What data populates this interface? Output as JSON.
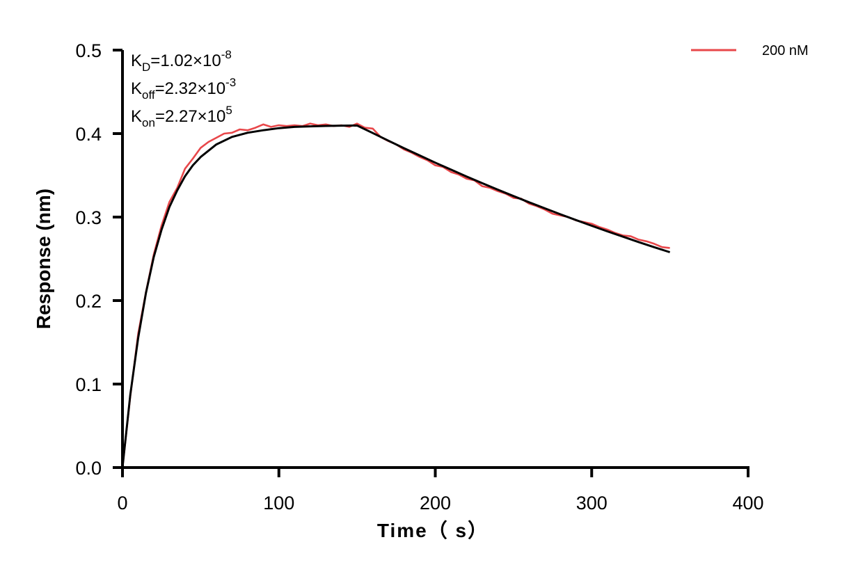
{
  "chart_data": {
    "type": "line",
    "xlabel": "Time（ s）",
    "ylabel": "Response (nm)",
    "xlim": [
      0,
      400
    ],
    "ylim": [
      0,
      0.5
    ],
    "xticks": [
      "0",
      "100",
      "200",
      "300",
      "400"
    ],
    "yticks": [
      "0.0",
      "0.1",
      "0.2",
      "0.3",
      "0.4",
      "0.5"
    ],
    "grid": false,
    "legend_position": "top-right",
    "annotations": {
      "kd": {
        "base": "K",
        "sub": "D",
        "value": "=1.02×10",
        "exp": "-8"
      },
      "koff": {
        "base": "K",
        "sub": "off",
        "value": "=2.32×10",
        "exp": "-3"
      },
      "kon": {
        "base": "K",
        "sub": "on",
        "value": "=2.27×10",
        "exp": "5"
      }
    },
    "series": [
      {
        "name": "200 nM",
        "color": "#e8474a",
        "x": [
          0,
          5,
          10,
          15,
          20,
          25,
          30,
          35,
          40,
          45,
          50,
          55,
          60,
          65,
          70,
          75,
          80,
          85,
          90,
          95,
          100,
          105,
          110,
          115,
          120,
          125,
          130,
          135,
          140,
          145,
          150,
          155,
          160,
          165,
          170,
          175,
          180,
          185,
          190,
          195,
          200,
          205,
          210,
          215,
          220,
          225,
          230,
          235,
          240,
          245,
          250,
          255,
          260,
          265,
          270,
          275,
          280,
          285,
          290,
          295,
          300,
          305,
          310,
          315,
          320,
          325,
          330,
          335,
          340,
          345,
          350
        ],
        "y": [
          0.0,
          0.085,
          0.16,
          0.21,
          0.255,
          0.29,
          0.318,
          0.335,
          0.358,
          0.37,
          0.383,
          0.39,
          0.395,
          0.4,
          0.401,
          0.405,
          0.404,
          0.407,
          0.411,
          0.408,
          0.41,
          0.409,
          0.41,
          0.409,
          0.412,
          0.41,
          0.411,
          0.409,
          0.41,
          0.408,
          0.412,
          0.407,
          0.406,
          0.396,
          0.391,
          0.387,
          0.381,
          0.377,
          0.372,
          0.368,
          0.362,
          0.36,
          0.354,
          0.351,
          0.346,
          0.344,
          0.337,
          0.335,
          0.331,
          0.328,
          0.323,
          0.322,
          0.316,
          0.313,
          0.309,
          0.304,
          0.302,
          0.3,
          0.296,
          0.294,
          0.292,
          0.288,
          0.285,
          0.281,
          0.278,
          0.277,
          0.273,
          0.271,
          0.268,
          0.264,
          0.263
        ]
      },
      {
        "role": "fit",
        "color": "#000000",
        "x": [
          0,
          5,
          10,
          15,
          20,
          25,
          30,
          35,
          40,
          45,
          50,
          60,
          70,
          80,
          90,
          100,
          110,
          120,
          130,
          140,
          150,
          160,
          170,
          180,
          190,
          200,
          210,
          220,
          230,
          240,
          250,
          260,
          270,
          280,
          290,
          300,
          310,
          320,
          330,
          340,
          350
        ],
        "y": [
          0.0,
          0.087,
          0.155,
          0.209,
          0.252,
          0.285,
          0.312,
          0.332,
          0.349,
          0.362,
          0.372,
          0.387,
          0.396,
          0.401,
          0.404,
          0.4065,
          0.408,
          0.4087,
          0.4092,
          0.4095,
          0.4097,
          0.4007,
          0.3915,
          0.3825,
          0.3738,
          0.3652,
          0.3568,
          0.3486,
          0.3406,
          0.3328,
          0.3252,
          0.3177,
          0.3105,
          0.3033,
          0.2964,
          0.2896,
          0.2829,
          0.2765,
          0.2701,
          0.2639,
          0.2579
        ]
      }
    ]
  }
}
